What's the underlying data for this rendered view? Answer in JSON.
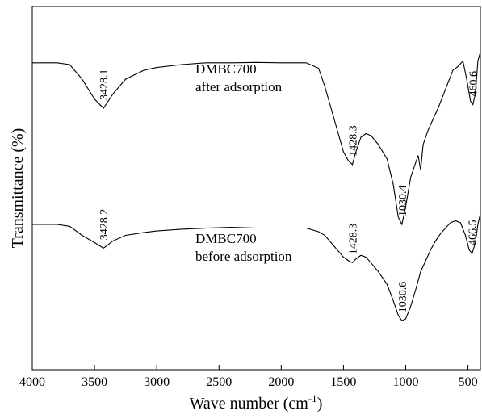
{
  "chart_data": {
    "type": "line",
    "title": "",
    "xlabel": "Wave number (cm",
    "xlabel_sup": "-1",
    "xlabel_suffix": ")",
    "ylabel": "Transmittance (%)",
    "xlim": [
      4000,
      400
    ],
    "x_reversed": true,
    "x_ticks": [
      4000,
      3500,
      3000,
      2500,
      2000,
      1500,
      1000,
      500
    ],
    "y_ticks_shown": false,
    "grid": false,
    "series": [
      {
        "label_lines": [
          "DMBC700",
          "after adsorption"
        ],
        "color": "#000000",
        "points": [
          [
            4000,
            0.845
          ],
          [
            3800,
            0.845
          ],
          [
            3700,
            0.84
          ],
          [
            3600,
            0.8
          ],
          [
            3500,
            0.745
          ],
          [
            3428.1,
            0.72
          ],
          [
            3350,
            0.76
          ],
          [
            3250,
            0.8
          ],
          [
            3100,
            0.825
          ],
          [
            3000,
            0.832
          ],
          [
            2800,
            0.84
          ],
          [
            2600,
            0.845
          ],
          [
            2400,
            0.845
          ],
          [
            2200,
            0.846
          ],
          [
            2000,
            0.845
          ],
          [
            1800,
            0.845
          ],
          [
            1700,
            0.83
          ],
          [
            1650,
            0.78
          ],
          [
            1600,
            0.72
          ],
          [
            1550,
            0.66
          ],
          [
            1500,
            0.6
          ],
          [
            1460,
            0.575
          ],
          [
            1428.3,
            0.565
          ],
          [
            1400,
            0.6
          ],
          [
            1360,
            0.64
          ],
          [
            1320,
            0.65
          ],
          [
            1280,
            0.645
          ],
          [
            1220,
            0.62
          ],
          [
            1150,
            0.58
          ],
          [
            1100,
            0.51
          ],
          [
            1060,
            0.42
          ],
          [
            1030.4,
            0.4
          ],
          [
            1000,
            0.45
          ],
          [
            960,
            0.53
          ],
          [
            920,
            0.57
          ],
          [
            900,
            0.59
          ],
          [
            880,
            0.55
          ],
          [
            860,
            0.62
          ],
          [
            820,
            0.66
          ],
          [
            780,
            0.69
          ],
          [
            740,
            0.72
          ],
          [
            700,
            0.755
          ],
          [
            660,
            0.79
          ],
          [
            620,
            0.825
          ],
          [
            580,
            0.835
          ],
          [
            540,
            0.85
          ],
          [
            510,
            0.8
          ],
          [
            480,
            0.74
          ],
          [
            460.6,
            0.73
          ],
          [
            440,
            0.76
          ],
          [
            420,
            0.85
          ],
          [
            400,
            0.875
          ]
        ],
        "annotations": [
          {
            "x": 3428.1,
            "label": "3428.1"
          },
          {
            "x": 1428.3,
            "label": "1428.3"
          },
          {
            "x": 1030.4,
            "label": "1030.4"
          },
          {
            "x": 460.6,
            "label": "460.6"
          }
        ]
      },
      {
        "label_lines": [
          "DMBC700",
          "before adsorption"
        ],
        "color": "#000000",
        "points": [
          [
            4000,
            0.4
          ],
          [
            3800,
            0.4
          ],
          [
            3700,
            0.395
          ],
          [
            3600,
            0.37
          ],
          [
            3500,
            0.35
          ],
          [
            3428.2,
            0.335
          ],
          [
            3350,
            0.355
          ],
          [
            3250,
            0.37
          ],
          [
            3100,
            0.378
          ],
          [
            3000,
            0.382
          ],
          [
            2800,
            0.387
          ],
          [
            2600,
            0.39
          ],
          [
            2400,
            0.392
          ],
          [
            2200,
            0.39
          ],
          [
            2000,
            0.39
          ],
          [
            1800,
            0.39
          ],
          [
            1700,
            0.38
          ],
          [
            1650,
            0.37
          ],
          [
            1600,
            0.35
          ],
          [
            1550,
            0.33
          ],
          [
            1500,
            0.31
          ],
          [
            1460,
            0.3
          ],
          [
            1428.3,
            0.295
          ],
          [
            1400,
            0.305
          ],
          [
            1360,
            0.315
          ],
          [
            1320,
            0.31
          ],
          [
            1280,
            0.295
          ],
          [
            1220,
            0.27
          ],
          [
            1150,
            0.235
          ],
          [
            1100,
            0.19
          ],
          [
            1060,
            0.15
          ],
          [
            1030.6,
            0.135
          ],
          [
            1000,
            0.14
          ],
          [
            960,
            0.175
          ],
          [
            920,
            0.22
          ],
          [
            880,
            0.27
          ],
          [
            840,
            0.3
          ],
          [
            800,
            0.33
          ],
          [
            760,
            0.355
          ],
          [
            720,
            0.375
          ],
          [
            680,
            0.39
          ],
          [
            640,
            0.405
          ],
          [
            600,
            0.41
          ],
          [
            560,
            0.405
          ],
          [
            520,
            0.37
          ],
          [
            490,
            0.33
          ],
          [
            466.5,
            0.32
          ],
          [
            440,
            0.35
          ],
          [
            420,
            0.4
          ],
          [
            400,
            0.43
          ]
        ],
        "annotations": [
          {
            "x": 3428.2,
            "label": "3428.2"
          },
          {
            "x": 1428.3,
            "label": "1428.3"
          },
          {
            "x": 1030.6,
            "label": "1030.6"
          },
          {
            "x": 466.5,
            "label": "466.5"
          }
        ]
      }
    ]
  }
}
